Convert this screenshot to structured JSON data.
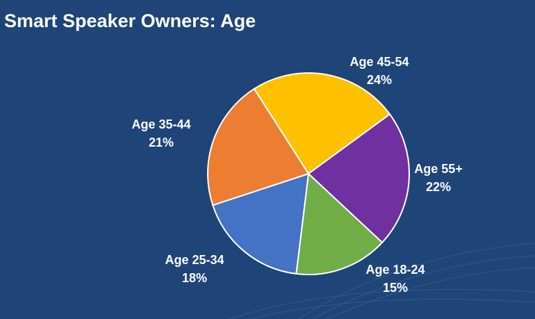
{
  "chart_data": {
    "type": "pie",
    "title": "Smart Speaker Owners: Age",
    "categories": [
      "Age 45-54",
      "Age 55+",
      "Age 18-24",
      "Age 25-34",
      "Age 35-44"
    ],
    "values": [
      24,
      22,
      15,
      18,
      21
    ],
    "value_labels": [
      "24%",
      "22%",
      "15%",
      "18%",
      "21%"
    ],
    "colors": [
      "#ffc000",
      "#7030a0",
      "#70ad47",
      "#4472c4",
      "#ed7d31"
    ]
  }
}
